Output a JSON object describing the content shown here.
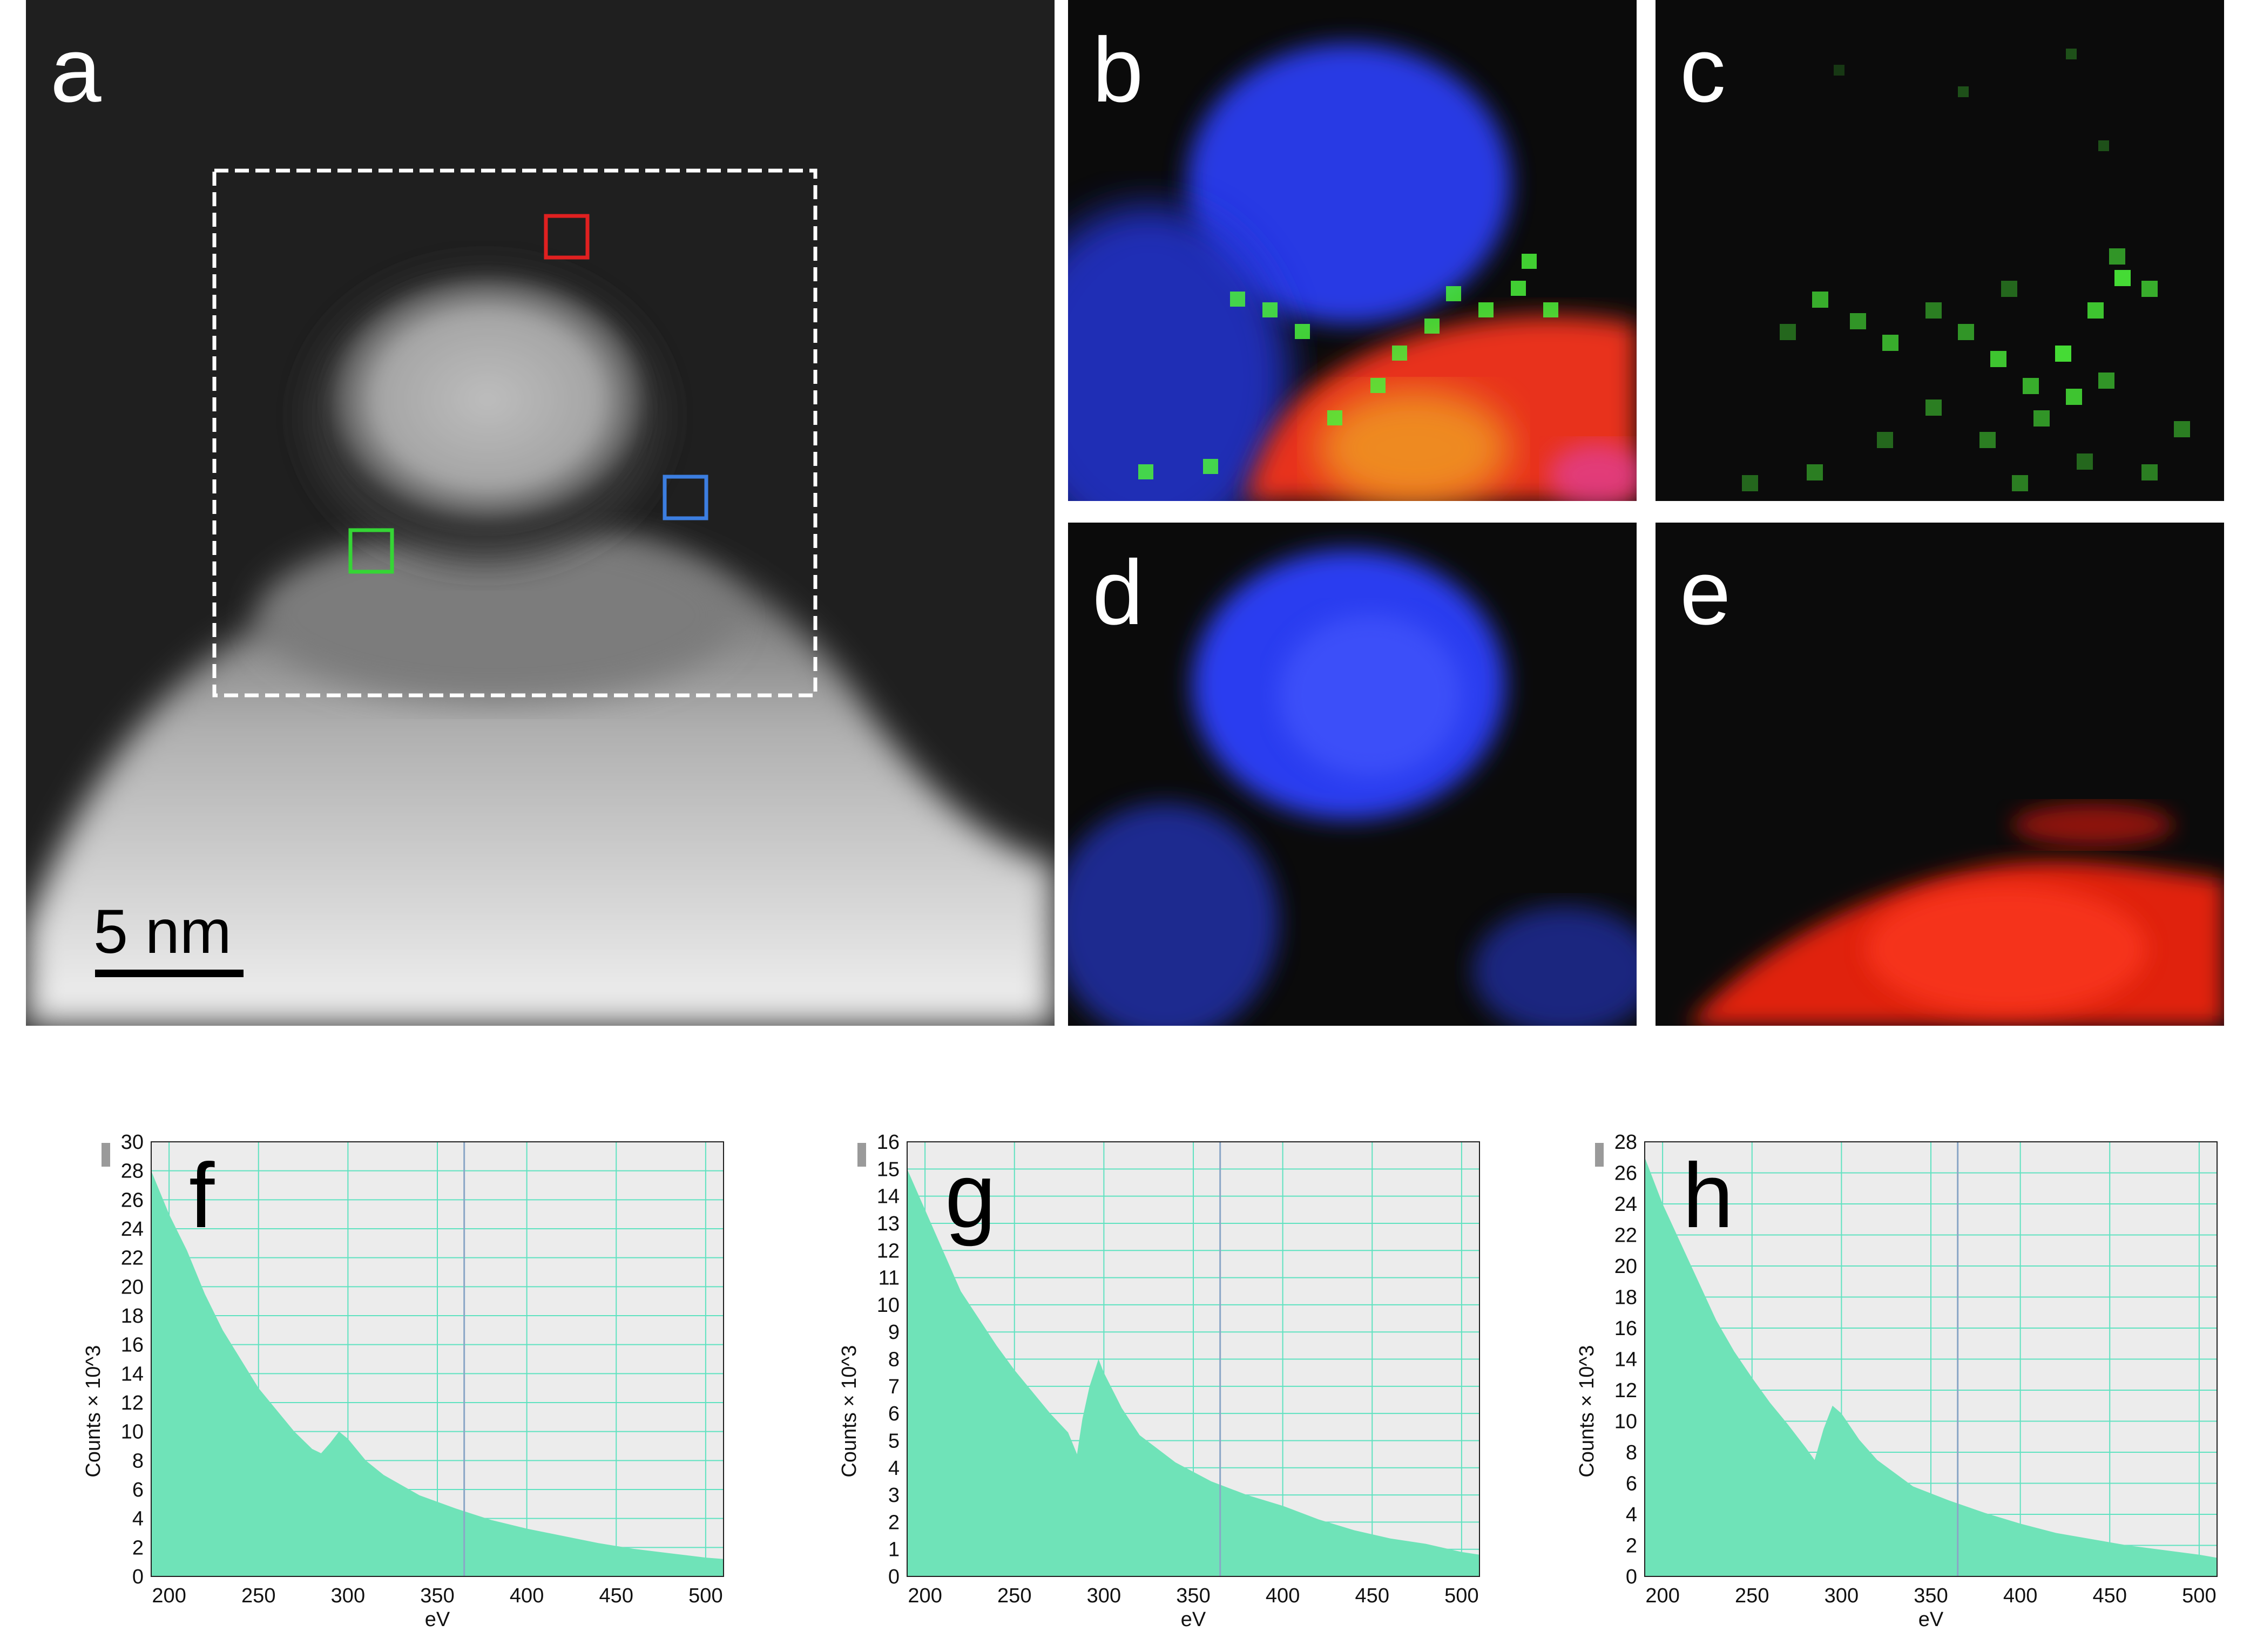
{
  "panels": {
    "a": {
      "label": "a",
      "scale_bar": "5 nm"
    },
    "b": {
      "label": "b"
    },
    "c": {
      "label": "c"
    },
    "d": {
      "label": "d"
    },
    "e": {
      "label": "e"
    }
  },
  "region_box_colors": {
    "red": "#e02020",
    "blue": "#3c7ee0",
    "green": "#35d535"
  },
  "map_colors": {
    "blue": "#2a3cf0",
    "green": "#4bf23a",
    "red": "#f02a1a"
  },
  "chart_data": [
    {
      "type": "area",
      "label": "f",
      "xlabel": "eV",
      "ylabel": "Counts × 10^3",
      "xlim": [
        190,
        510
      ],
      "ylim": [
        0,
        30
      ],
      "xticks": [
        200,
        250,
        300,
        350,
        400,
        450,
        500
      ],
      "yticks": [
        0,
        2,
        4,
        6,
        8,
        10,
        12,
        14,
        16,
        18,
        20,
        22,
        24,
        26,
        28,
        30
      ],
      "x": [
        190,
        200,
        210,
        220,
        230,
        240,
        250,
        260,
        270,
        280,
        285,
        290,
        295,
        300,
        310,
        320,
        340,
        360,
        380,
        400,
        420,
        440,
        460,
        480,
        500,
        510
      ],
      "y": [
        28,
        25,
        22.5,
        19.5,
        17,
        15,
        13,
        11.5,
        10,
        8.8,
        8.5,
        9.2,
        10,
        9.5,
        8,
        7,
        5.6,
        4.7,
        3.9,
        3.3,
        2.8,
        2.3,
        1.9,
        1.6,
        1.3,
        1.2
      ],
      "marker_line_x": 365,
      "fill_color": "#6fe3b8"
    },
    {
      "type": "area",
      "label": "g",
      "xlabel": "eV",
      "ylabel": "Counts × 10^3",
      "xlim": [
        190,
        510
      ],
      "ylim": [
        0,
        16
      ],
      "xticks": [
        200,
        250,
        300,
        350,
        400,
        450,
        500
      ],
      "yticks": [
        0,
        1,
        2,
        3,
        4,
        5,
        6,
        7,
        8,
        9,
        10,
        11,
        12,
        13,
        14,
        15,
        16
      ],
      "x": [
        190,
        200,
        210,
        220,
        230,
        240,
        250,
        260,
        270,
        280,
        285,
        288,
        292,
        297,
        300,
        310,
        320,
        340,
        360,
        380,
        400,
        420,
        440,
        460,
        480,
        500,
        510
      ],
      "y": [
        15,
        13.5,
        12,
        10.5,
        9.5,
        8.5,
        7.6,
        6.8,
        6,
        5.3,
        4.5,
        5.8,
        7,
        8,
        7.5,
        6.2,
        5.2,
        4.2,
        3.5,
        3,
        2.6,
        2.1,
        1.7,
        1.4,
        1.2,
        0.9,
        0.8
      ],
      "marker_line_x": 365,
      "fill_color": "#6fe3b8"
    },
    {
      "type": "area",
      "label": "h",
      "xlabel": "eV",
      "ylabel": "Counts × 10^3",
      "xlim": [
        190,
        510
      ],
      "ylim": [
        0,
        28
      ],
      "xticks": [
        200,
        250,
        300,
        350,
        400,
        450,
        500
      ],
      "yticks": [
        0,
        2,
        4,
        6,
        8,
        10,
        12,
        14,
        16,
        18,
        20,
        22,
        24,
        26,
        28
      ],
      "x": [
        190,
        200,
        210,
        220,
        230,
        240,
        250,
        260,
        270,
        280,
        285,
        290,
        295,
        300,
        310,
        320,
        340,
        360,
        380,
        400,
        420,
        440,
        460,
        480,
        500,
        510
      ],
      "y": [
        27,
        24,
        21.5,
        19,
        16.5,
        14.5,
        12.8,
        11.2,
        9.8,
        8.3,
        7.5,
        9.5,
        11,
        10.5,
        8.8,
        7.5,
        5.8,
        4.9,
        4.1,
        3.4,
        2.8,
        2.4,
        2,
        1.7,
        1.4,
        1.2
      ],
      "marker_line_x": 365,
      "fill_color": "#6fe3b8"
    }
  ]
}
